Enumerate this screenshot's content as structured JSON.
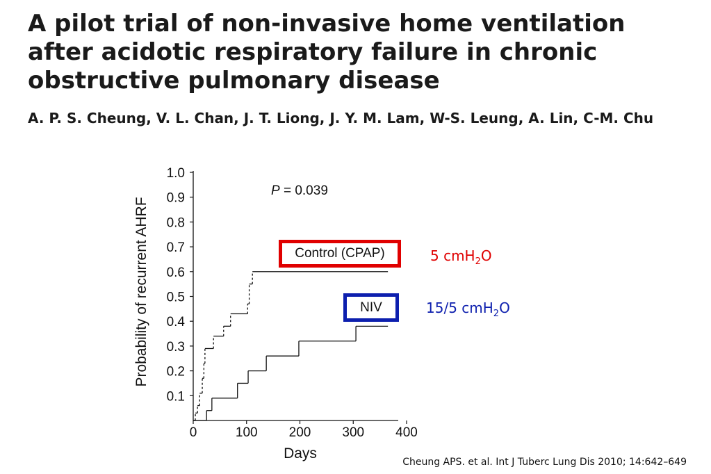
{
  "header": {
    "title": "A pilot trial of non-invasive home ventilation after acidotic respiratory failure in chronic obstructive pulmonary disease",
    "authors": "A. P. S. Cheung, V. L. Chan, J. T. Liong, J. Y. M. Lam, W-S. Leung, A. Lin, C-M. Chu"
  },
  "annotations": {
    "p_value_label": "P",
    "p_value_rest": " = 0.039",
    "control_pressure_prefix": "5 cmH",
    "niv_pressure_prefix": "15/5 cmH",
    "pressure_sub": "2",
    "pressure_suffix": "O",
    "control_color": "#e00000",
    "niv_color": "#0d1fae"
  },
  "citation": "Cheung APS. et al. Int J Tuberc Lung Dis 2010; 14:642–649",
  "chart_data": {
    "type": "line",
    "subtype": "kaplan-meier step",
    "xlabel": "Days",
    "ylabel": "Probability of recurrent AHRF",
    "xlim": [
      0,
      400
    ],
    "ylim": [
      0,
      1.0
    ],
    "x_ticks": [
      "0",
      "100",
      "200",
      "300",
      "400"
    ],
    "y_ticks": [
      "0.1",
      "0.2",
      "0.3",
      "0.4",
      "0.5",
      "0.6",
      "0.7",
      "0.8",
      "0.9",
      "1.0"
    ],
    "grid": false,
    "series": [
      {
        "name": "Control (CPAP)",
        "line_style": "dashed-vertical",
        "steps": [
          [
            0,
            0
          ],
          [
            4,
            0.03
          ],
          [
            8,
            0.06
          ],
          [
            12,
            0.11
          ],
          [
            17,
            0.17
          ],
          [
            20,
            0.23
          ],
          [
            22,
            0.29
          ],
          [
            38,
            0.34
          ],
          [
            57,
            0.38
          ],
          [
            70,
            0.43
          ],
          [
            102,
            0.47
          ],
          [
            105,
            0.55
          ],
          [
            111,
            0.6
          ],
          [
            365,
            0.6
          ]
        ]
      },
      {
        "name": "NIV",
        "line_style": "solid",
        "steps": [
          [
            0,
            0
          ],
          [
            25,
            0.04
          ],
          [
            35,
            0.09
          ],
          [
            83,
            0.15
          ],
          [
            103,
            0.2
          ],
          [
            137,
            0.26
          ],
          [
            198,
            0.32
          ],
          [
            305,
            0.38
          ],
          [
            365,
            0.38
          ]
        ]
      }
    ]
  }
}
